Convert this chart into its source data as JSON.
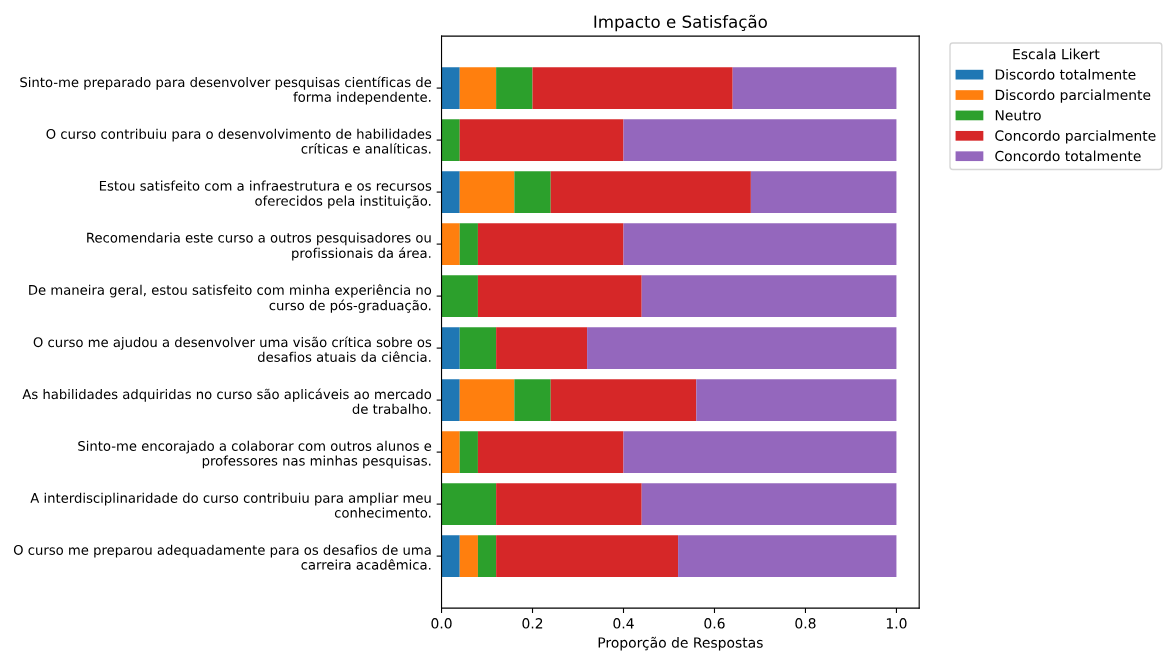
{
  "chart_data": {
    "type": "bar",
    "orientation": "horizontal",
    "stacked": true,
    "title": "Impacto e Satisfação",
    "xlabel": "Proporção de Respostas",
    "legend_title": "Escala Likert",
    "legend": "right",
    "categories": [
      "Sinto-me preparado para desenvolver pesquisas científicas de\nforma independente.",
      "O curso contribuiu para o desenvolvimento de habilidades\ncríticas e analíticas.",
      "Estou satisfeito com a infraestrutura e os recursos\noferecidos pela instituição.",
      "Recomendaria este curso a outros pesquisadores ou\nprofissionais da área.",
      "De maneira geral, estou satisfeito com minha experiência no\ncurso de pós-graduação.",
      "O curso me ajudou a desenvolver uma visão crítica sobre os\ndesafios atuais da ciência.",
      "As habilidades adquiridas no curso são aplicáveis ao mercado\nde trabalho.",
      "Sinto-me encorajado a colaborar com outros alunos e\nprofessores nas minhas pesquisas.",
      "A interdisciplinaridade do curso contribuiu para ampliar meu\nconhecimento.",
      "O curso me preparou adequadamente para os desafios de uma\ncarreira acadêmica."
    ],
    "series": [
      {
        "name": "Discordo totalmente",
        "color": "#1f77b4",
        "values": [
          0.04,
          0,
          0.04,
          0,
          0,
          0.04,
          0.04,
          0,
          0,
          0.04
        ]
      },
      {
        "name": "Discordo parcialmente",
        "color": "#ff7f0e",
        "values": [
          0.08,
          0,
          0.12,
          0.04,
          0,
          0,
          0.12,
          0.04,
          0,
          0.04
        ]
      },
      {
        "name": "Neutro",
        "color": "#2ca02c",
        "values": [
          0.08,
          0.04,
          0.08,
          0.04,
          0.08,
          0.08,
          0.08,
          0.04,
          0.12,
          0.04
        ]
      },
      {
        "name": "Concordo parcialmente",
        "color": "#d62728",
        "values": [
          0.44,
          0.36,
          0.44,
          0.32,
          0.36,
          0.2,
          0.32,
          0.32,
          0.32,
          0.4
        ]
      },
      {
        "name": "Concordo totalmente",
        "color": "#9467bd",
        "values": [
          0.36,
          0.6,
          0.32,
          0.6,
          0.56,
          0.68,
          0.44,
          0.6,
          0.56,
          0.48
        ]
      }
    ],
    "xlim": [
      0,
      1.05
    ],
    "xticks": [
      {
        "value": 0,
        "label": "0.0"
      },
      {
        "value": 0.2,
        "label": "0.2"
      },
      {
        "value": 0.4,
        "label": "0.4"
      },
      {
        "value": 0.6,
        "label": "0.6"
      },
      {
        "value": 0.8,
        "label": "0.8"
      },
      {
        "value": 1,
        "label": "1.0"
      }
    ]
  }
}
